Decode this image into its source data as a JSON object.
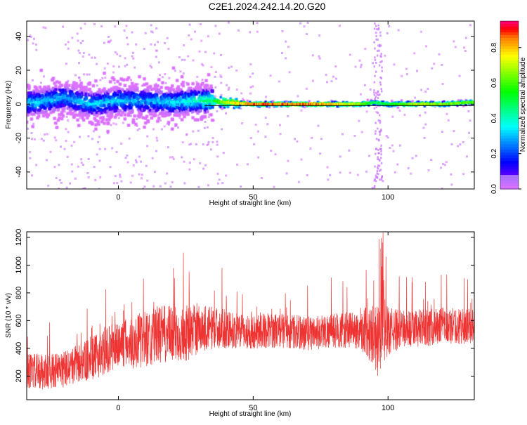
{
  "title": "C2E1.2024.242.14.20.G20",
  "colorbar": {
    "label": "Normalized spectral amplitude",
    "ticks": [
      0.0,
      0.2,
      0.4,
      0.6,
      0.8
    ],
    "tick_labels": [
      "0.0",
      "0.2",
      "0.4",
      "0.6",
      "0.8"
    ],
    "range": [
      0,
      0.95
    ]
  },
  "chart_data": [
    {
      "type": "heatmap",
      "title": "",
      "xlabel": "Height of straight line (km)",
      "ylabel": "Frequency (Hz)",
      "xlim": [
        -34,
        132
      ],
      "ylim": [
        -50,
        49
      ],
      "xticks": [
        0,
        50,
        100
      ],
      "xtick_labels": [
        "0",
        "50",
        "100"
      ],
      "yticks": [
        -40,
        -20,
        0,
        20,
        40
      ],
      "ytick_labels": [
        "-40",
        "-20",
        "0",
        "20",
        "40"
      ],
      "color_scale": "rainbow (purple = 0, red = max)",
      "reference_line": {
        "frequency": 0,
        "color": "#000000"
      },
      "ridge": [
        {
          "x": -30,
          "y": 1,
          "v": 0.35
        },
        {
          "x": -20,
          "y": 4,
          "v": 0.3
        },
        {
          "x": -10,
          "y": 0,
          "v": 0.35
        },
        {
          "x": 0,
          "y": 2,
          "v": 0.35
        },
        {
          "x": 10,
          "y": 2,
          "v": 0.3
        },
        {
          "x": 20,
          "y": 1,
          "v": 0.35
        },
        {
          "x": 30,
          "y": 2,
          "v": 0.45
        },
        {
          "x": 35,
          "y": 2,
          "v": 0.55
        },
        {
          "x": 40,
          "y": 1,
          "v": 0.75
        },
        {
          "x": 50,
          "y": 0,
          "v": 0.92
        },
        {
          "x": 60,
          "y": 0,
          "v": 0.92
        },
        {
          "x": 70,
          "y": 0,
          "v": 0.9
        },
        {
          "x": 80,
          "y": 0,
          "v": 0.85
        },
        {
          "x": 90,
          "y": 0,
          "v": 0.7
        },
        {
          "x": 95,
          "y": 1,
          "v": 0.5
        },
        {
          "x": 100,
          "y": 0,
          "v": 0.55
        },
        {
          "x": 110,
          "y": 0,
          "v": 0.75
        },
        {
          "x": 120,
          "y": 0,
          "v": 0.7
        },
        {
          "x": 130,
          "y": 1,
          "v": 0.65
        }
      ]
    },
    {
      "type": "line",
      "title": "",
      "xlabel": "Height of straight line (km)",
      "ylabel": "SNR (10 * v/v)",
      "xlim": [
        -34,
        132
      ],
      "ylim": [
        30,
        1240
      ],
      "xticks": [
        0,
        50,
        100
      ],
      "xtick_labels": [
        "0",
        "50",
        "100"
      ],
      "yticks": [
        200,
        400,
        600,
        800,
        1000,
        1200
      ],
      "ytick_labels": [
        "200",
        "400",
        "600",
        "800",
        "1000",
        "1200"
      ],
      "series": [
        {
          "color": "#ee3333",
          "x": [
            -34,
            -30,
            -25,
            -20,
            -15,
            -10,
            -5,
            0,
            5,
            10,
            15,
            20,
            25,
            30,
            35,
            40,
            45,
            50,
            55,
            60,
            65,
            70,
            75,
            80,
            85,
            90,
            93,
            95,
            97,
            98,
            99,
            100,
            105,
            110,
            115,
            120,
            125,
            130,
            132
          ],
          "center": [
            240,
            230,
            235,
            250,
            290,
            320,
            380,
            430,
            440,
            470,
            500,
            500,
            510,
            540,
            550,
            540,
            520,
            520,
            530,
            530,
            520,
            510,
            520,
            530,
            530,
            530,
            520,
            500,
            420,
            600,
            520,
            520,
            540,
            540,
            550,
            560,
            560,
            560,
            570
          ],
          "spread": [
            180,
            190,
            180,
            190,
            200,
            220,
            240,
            260,
            270,
            290,
            300,
            300,
            290,
            260,
            220,
            200,
            180,
            180,
            180,
            180,
            180,
            180,
            180,
            180,
            190,
            200,
            300,
            350,
            380,
            420,
            300,
            250,
            200,
            200,
            190,
            190,
            190,
            180,
            180
          ]
        }
      ]
    }
  ]
}
